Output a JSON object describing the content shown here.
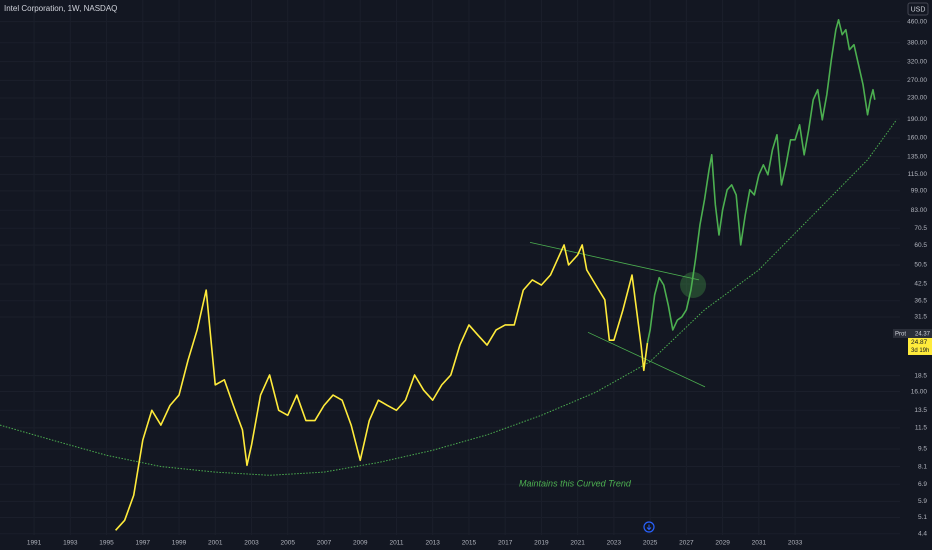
{
  "chart_data": {
    "type": "line",
    "title": "Intel Corporation, 1W, NASDAQ",
    "currency": "USD",
    "log_y": true,
    "grid": true,
    "xlim": [
      1989.12,
      2038.79
    ],
    "ylim": [
      4.35,
      560
    ],
    "xticks": [
      1991,
      1993,
      1995,
      1997,
      1999,
      2001,
      2003,
      2005,
      2007,
      2009,
      2011,
      2013,
      2015,
      2017,
      2019,
      2021,
      2023,
      2025,
      2027,
      2029,
      2031,
      2033
    ],
    "yticks": [
      {
        "value": 460,
        "label": "460.00"
      },
      {
        "value": 380,
        "label": "380.00"
      },
      {
        "value": 320,
        "label": "320.00"
      },
      {
        "value": 270,
        "label": "270.00"
      },
      {
        "value": 230,
        "label": "230.00"
      },
      {
        "value": 190,
        "label": "190.00"
      },
      {
        "value": 160,
        "label": "160.00"
      },
      {
        "value": 135,
        "label": "135.00"
      },
      {
        "value": 115,
        "label": "115.00"
      },
      {
        "value": 99,
        "label": "99.00"
      },
      {
        "value": 83,
        "label": "83.00"
      },
      70.5,
      60.5,
      50.5,
      42.5,
      36.5,
      31.5,
      18.5,
      {
        "value": 16,
        "label": "16.00"
      },
      13.5,
      11.5,
      9.5,
      8.1,
      6.9,
      5.9,
      5.1,
      4.4
    ],
    "series": [
      {
        "color": "#ffeb3b",
        "x": [
          1995.5,
          1996,
          1996.5,
          1997,
          1997.5,
          1998,
          1998.5,
          1999,
          1999.5,
          2000,
          2000.5,
          2001,
          2001.5,
          2002,
          2002.5,
          2002.75,
          2003,
          2003.5,
          2004,
          2004.5,
          2005,
          2005.5,
          2006,
          2006.5,
          2007,
          2007.5,
          2008,
          2008.5,
          2009,
          2009.5,
          2010,
          2010.5,
          2011,
          2011.5,
          2012,
          2012.5,
          2013,
          2013.5,
          2014,
          2014.5,
          2015,
          2015.5,
          2016,
          2016.5,
          2017,
          2017.5,
          2018,
          2018.5,
          2019,
          2019.5,
          2020,
          2020.25,
          2020.5,
          2021,
          2021.25,
          2021.5,
          2022,
          2022.5,
          2022.75,
          2023,
          2023.5,
          2024,
          2024.25,
          2024.5,
          2024.65,
          2024.85
        ],
        "values": [
          4.54,
          4.97,
          6.24,
          10.3,
          13.5,
          11.8,
          14.1,
          15.5,
          21.3,
          28.0,
          40.2,
          17.0,
          17.8,
          14.1,
          11.3,
          8.19,
          9.83,
          15.5,
          18.6,
          13.5,
          12.9,
          15.5,
          12.3,
          12.3,
          14.1,
          15.5,
          14.8,
          11.8,
          8.57,
          12.3,
          14.8,
          14.1,
          13.5,
          14.8,
          18.6,
          16.2,
          14.8,
          17.0,
          18.6,
          24.4,
          29.3,
          26.7,
          24.4,
          28.0,
          29.3,
          29.3,
          40.2,
          44.1,
          42.1,
          46.1,
          55.3,
          60.6,
          50.5,
          55.3,
          60.6,
          48.3,
          42.1,
          36.8,
          25.5,
          25.5,
          33.6,
          46.1,
          33.6,
          24.4,
          19.4,
          24.87
        ]
      },
      {
        "color": "#4caf50",
        "x": [
          2024.85,
          2025,
          2025.25,
          2025.5,
          2025.75,
          2026,
          2026.25,
          2026.5,
          2026.75,
          2027,
          2027.25,
          2027.5,
          2027.75,
          2028,
          2028.25,
          2028.4,
          2028.6,
          2028.8,
          2029,
          2029.25,
          2029.5,
          2029.75,
          2030,
          2030.25,
          2030.5,
          2030.75,
          2031,
          2031.25,
          2031.5,
          2031.75,
          2032,
          2032.25,
          2032.5,
          2032.75,
          2033,
          2033.25,
          2033.5,
          2033.75,
          2034,
          2034.25,
          2034.5,
          2034.75,
          2035,
          2035.25,
          2035.4,
          2035.6,
          2035.8,
          2036,
          2036.25,
          2036.5,
          2036.75,
          2037,
          2037.15,
          2037.3,
          2037.4
        ],
        "values": [
          24.87,
          28.0,
          38.5,
          45,
          42.1,
          35.1,
          28.0,
          30.6,
          31.5,
          33.6,
          40.2,
          52.9,
          72.7,
          91.2,
          119.8,
          137.3,
          87.2,
          66.3,
          83.3,
          99.9,
          104.5,
          95.4,
          60.6,
          79.6,
          99.9,
          95.4,
          114.5,
          125.4,
          114.5,
          143.7,
          164.7,
          104.5,
          125.4,
          157.4,
          157.4,
          180.3,
          137.3,
          172.3,
          226.4,
          247.9,
          188.7,
          236.9,
          325.6,
          427.7,
          468,
          408.7,
          427.7,
          356.6,
          373.2,
          311.2,
          259.4,
          197.5,
          226.4,
          247.9,
          226.4
        ]
      }
    ],
    "lines": [
      {
        "color": "#4caf50",
        "style": "dotted",
        "x": [
          1989.12,
          1992,
          1995,
          1998,
          2001,
          2004,
          2007,
          2010,
          2013,
          2016,
          2019,
          2022,
          2025,
          2028,
          2031,
          2034,
          2037,
          2038.6
        ],
        "values": [
          11.8,
          10.3,
          8.97,
          8.1,
          7.7,
          7.48,
          7.7,
          8.4,
          9.39,
          10.8,
          12.9,
          15.9,
          21.0,
          33.6,
          48.3,
          79.6,
          131.2,
          188.7
        ]
      },
      {
        "color": "#4caf50",
        "style": "solid",
        "x": [
          2018.37,
          2027.7
        ],
        "values": [
          62,
          44.1
        ]
      },
      {
        "color": "#4caf50",
        "style": "solid",
        "x": [
          2021.57,
          2028.03
        ],
        "values": [
          27.4,
          16.7
        ]
      }
    ],
    "highlight": {
      "x": 2027.37,
      "value": 42.1,
      "color": "#4caf50"
    },
    "annotation": "Maintains this Curved Trend",
    "last_price": {
      "value": 24.87,
      "countdown": "3d 19h",
      "color": "#ffeb3b"
    },
    "pre_market": {
      "label": "Prot",
      "value": 24.37
    }
  }
}
